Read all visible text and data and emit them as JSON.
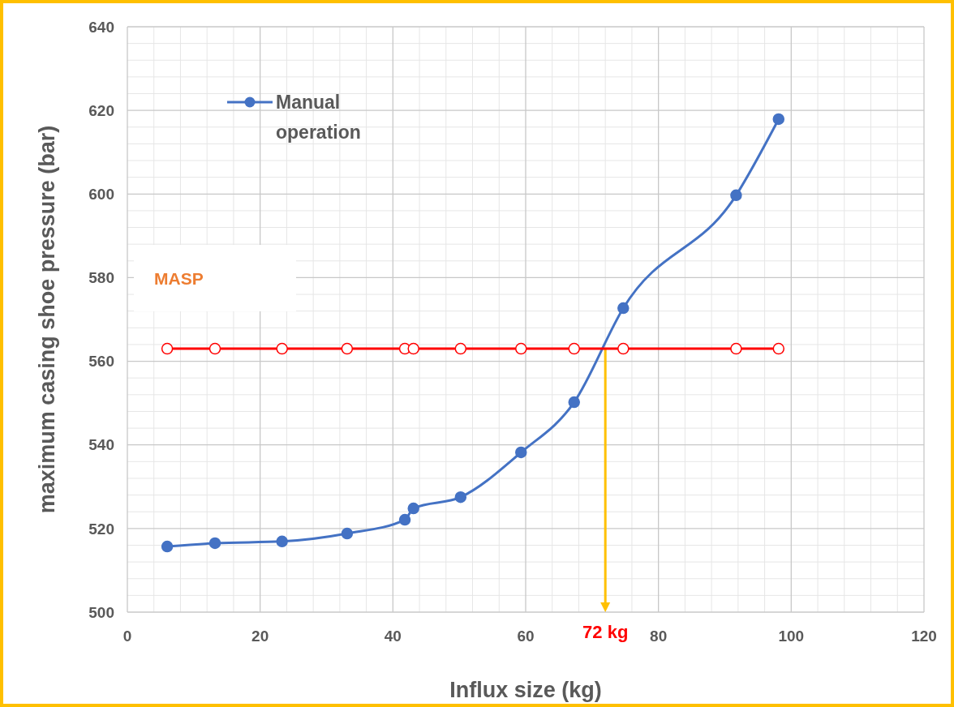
{
  "chart_data": {
    "type": "line",
    "xlabel": "Influx size (kg)",
    "ylabel": "maximum casing shoe pressure (bar)",
    "xlim": [
      0,
      120
    ],
    "xticks": [
      0,
      20,
      40,
      60,
      80,
      100,
      120
    ],
    "ylim": [
      500,
      640
    ],
    "yticks": [
      500,
      520,
      540,
      560,
      580,
      600,
      620,
      640
    ],
    "grid": true,
    "legend": "top left",
    "marker": "circle",
    "series": [
      {
        "name": "Manual operation",
        "color": "#4472c4",
        "x": [
          6.0,
          13.2,
          23.3,
          33.1,
          41.8,
          43.1,
          50.2,
          59.3,
          67.3,
          74.7,
          91.7,
          98.1
        ],
        "values": [
          515.7,
          516.5,
          516.9,
          518.8,
          522.1,
          524.8,
          527.5,
          538.2,
          550.2,
          572.7,
          599.7,
          617.9
        ]
      },
      {
        "color": "#ff0000",
        "x": [
          6.0,
          13.2,
          23.3,
          33.1,
          41.8,
          43.1,
          50.2,
          59.3,
          67.3,
          74.7,
          91.7,
          98.1
        ],
        "values": [
          563,
          563,
          563,
          563,
          563,
          563,
          563,
          563,
          563,
          563,
          563,
          563
        ]
      }
    ],
    "ref_lines": [
      {
        "axis": "x",
        "value": 72,
        "label": "72 kg",
        "color": "#ffc000"
      }
    ],
    "annotations": [
      "MASP"
    ]
  }
}
